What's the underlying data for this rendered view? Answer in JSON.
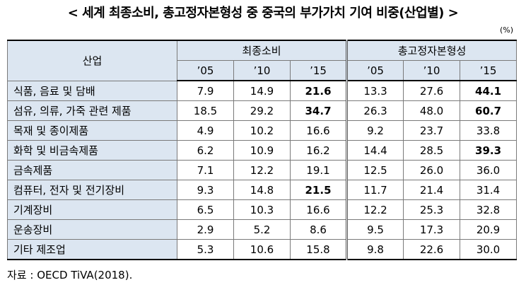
{
  "title": "< 세계 최종소비, 총고정자본형성 중 중국의 부가가치 기여 비중(산업별) >",
  "unit": "(%)",
  "header": {
    "industry": "산업",
    "group1": "최종소비",
    "group2": "총고정자본형성",
    "years": [
      "’05",
      "’10",
      "’15",
      "’05",
      "’10",
      "’15"
    ]
  },
  "rows": [
    {
      "name": "식품, 음료 및 담배",
      "values": [
        "7.9",
        "14.9",
        "21.6",
        "13.3",
        "27.6",
        "44.1"
      ],
      "bold": [
        false,
        false,
        true,
        false,
        false,
        true
      ]
    },
    {
      "name": "섬유, 의류, 가죽 관련 제품",
      "values": [
        "18.5",
        "29.2",
        "34.7",
        "26.3",
        "48.0",
        "60.7"
      ],
      "bold": [
        false,
        false,
        true,
        false,
        false,
        true
      ]
    },
    {
      "name": "목재 및 종이제품",
      "values": [
        "4.9",
        "10.2",
        "16.6",
        "9.2",
        "23.7",
        "33.8"
      ],
      "bold": [
        false,
        false,
        false,
        false,
        false,
        false
      ]
    },
    {
      "name": "화학 및 비금속제품",
      "values": [
        "6.2",
        "10.9",
        "16.2",
        "14.4",
        "28.5",
        "39.3"
      ],
      "bold": [
        false,
        false,
        false,
        false,
        false,
        true
      ]
    },
    {
      "name": "금속제품",
      "values": [
        "7.1",
        "12.2",
        "19.1",
        "12.5",
        "26.0",
        "36.0"
      ],
      "bold": [
        false,
        false,
        false,
        false,
        false,
        false
      ]
    },
    {
      "name": "컴퓨터, 전자 및 전기장비",
      "values": [
        "9.3",
        "14.8",
        "21.5",
        "11.7",
        "21.4",
        "31.4"
      ],
      "bold": [
        false,
        false,
        true,
        false,
        false,
        false
      ]
    },
    {
      "name": "기계장비",
      "values": [
        "6.5",
        "10.3",
        "16.6",
        "12.2",
        "25.3",
        "32.8"
      ],
      "bold": [
        false,
        false,
        false,
        false,
        false,
        false
      ]
    },
    {
      "name": "운송장비",
      "values": [
        "2.9",
        "5.2",
        "8.6",
        "9.5",
        "17.3",
        "20.9"
      ],
      "bold": [
        false,
        false,
        false,
        false,
        false,
        false
      ]
    },
    {
      "name": "기타 제조업",
      "values": [
        "5.3",
        "10.6",
        "15.8",
        "9.8",
        "22.6",
        "30.0"
      ],
      "bold": [
        false,
        false,
        false,
        false,
        false,
        false
      ]
    }
  ],
  "source": "자료 : OECD TiVA(2018)."
}
